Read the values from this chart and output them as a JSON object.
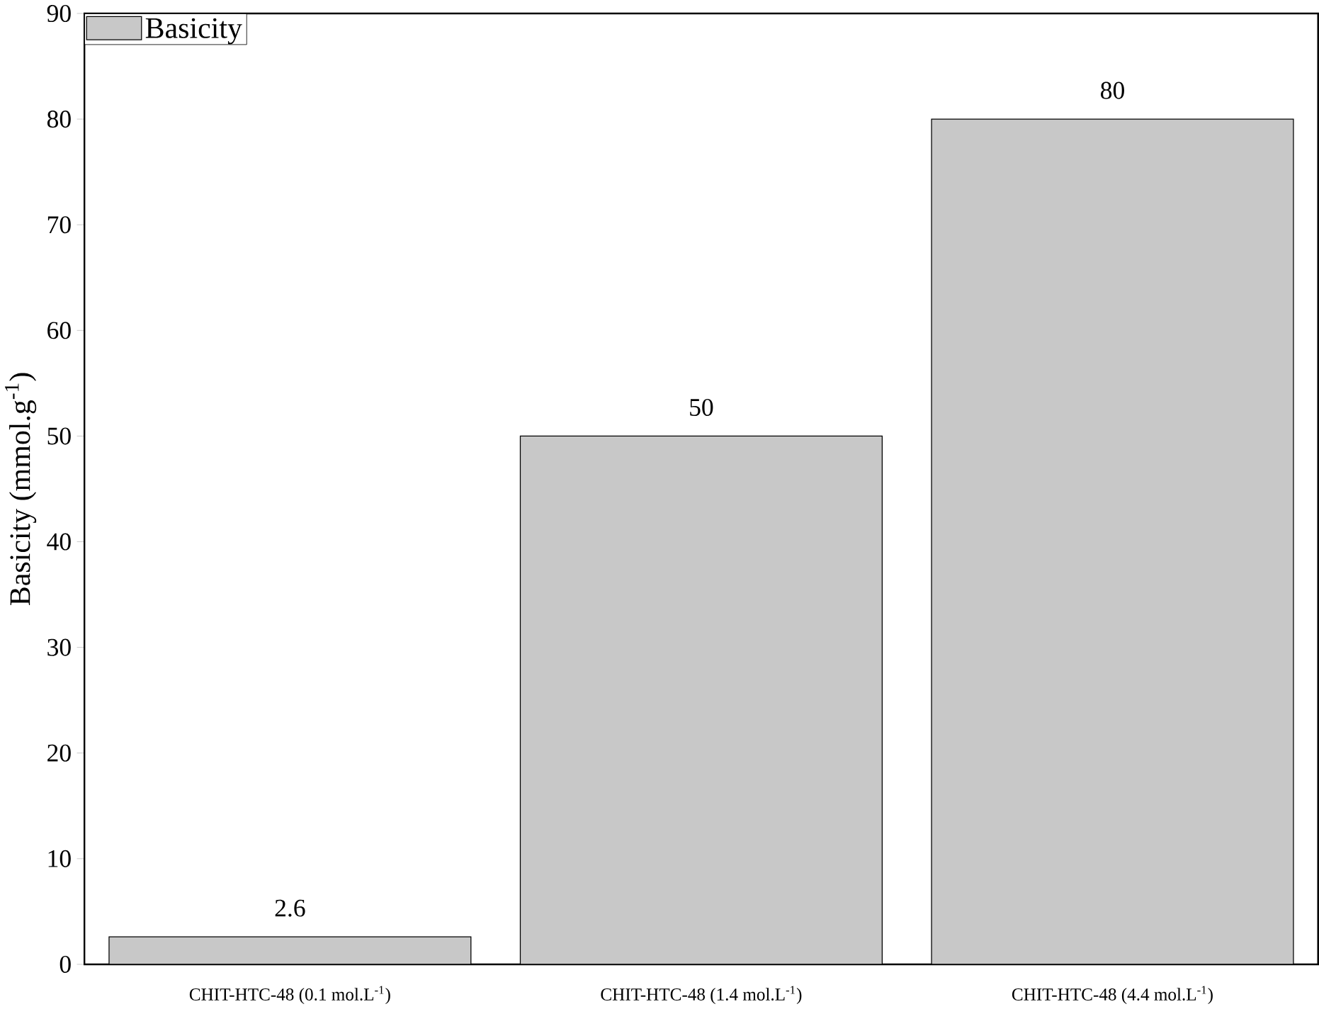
{
  "chart_data": {
    "type": "bar",
    "ylabel": "Basicity (mmol.g$^{-1}$)",
    "categories": [
      "CHIT-HTC-48 (0.1 mol.L$^{-1}$)",
      "CHIT-HTC-48 (1.4 mol.L$^{-1}$)",
      "CHIT-HTC-48 (4.4 mol.L$^{-1}$)"
    ],
    "series": [
      {
        "name": "Basicity",
        "color": "#c8c8c8",
        "values": [
          2.6,
          50,
          80
        ]
      }
    ],
    "ylim": [
      0,
      90
    ],
    "yticks": [
      0,
      10,
      20,
      30,
      40,
      50,
      60,
      70,
      80,
      90
    ],
    "data_labels": true,
    "legend": "top left"
  }
}
